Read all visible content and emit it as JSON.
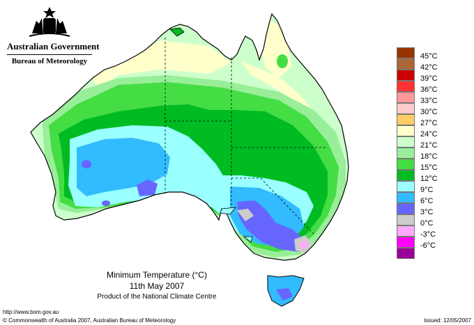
{
  "header": {
    "government": "Australian Government",
    "bureau": "Bureau of Meteorology",
    "crest_icon": "coat-of-arms-icon"
  },
  "title": {
    "line1": "Minimum Temperature (°C)",
    "line2": "11th May 2007",
    "line3": "Product of the National Climate Centre"
  },
  "legend": [
    {
      "label": "45°C",
      "color": "#993300"
    },
    {
      "label": "42°C",
      "color": "#aa6633"
    },
    {
      "label": "39°C",
      "color": "#cc0000"
    },
    {
      "label": "36°C",
      "color": "#ff3333"
    },
    {
      "label": "33°C",
      "color": "#ff9999"
    },
    {
      "label": "30°C",
      "color": "#ffcccc"
    },
    {
      "label": "27°C",
      "color": "#ffcc66"
    },
    {
      "label": "24°C",
      "color": "#ffffcc"
    },
    {
      "label": "21°C",
      "color": "#ccffcc"
    },
    {
      "label": "18°C",
      "color": "#99ee99"
    },
    {
      "label": "15°C",
      "color": "#44dd44"
    },
    {
      "label": "12°C",
      "color": "#00bb22"
    },
    {
      "label": "9°C",
      "color": "#99ffff"
    },
    {
      "label": "6°C",
      "color": "#33bbff"
    },
    {
      "label": "3°C",
      "color": "#6666ff"
    },
    {
      "label": "0°C",
      "color": "#cccccc"
    },
    {
      "label": "-3°C",
      "color": "#ffaaff"
    },
    {
      "label": "-6°C",
      "color": "#ff00ff"
    },
    {
      "label": "",
      "color": "#990099"
    }
  ],
  "footer": {
    "url": "http://www.bom.gov.au",
    "copyright": "© Commonwealth of Australia 2007, Australian Bureau of Meteorology",
    "issued": "Issued: 12/05/2007"
  }
}
